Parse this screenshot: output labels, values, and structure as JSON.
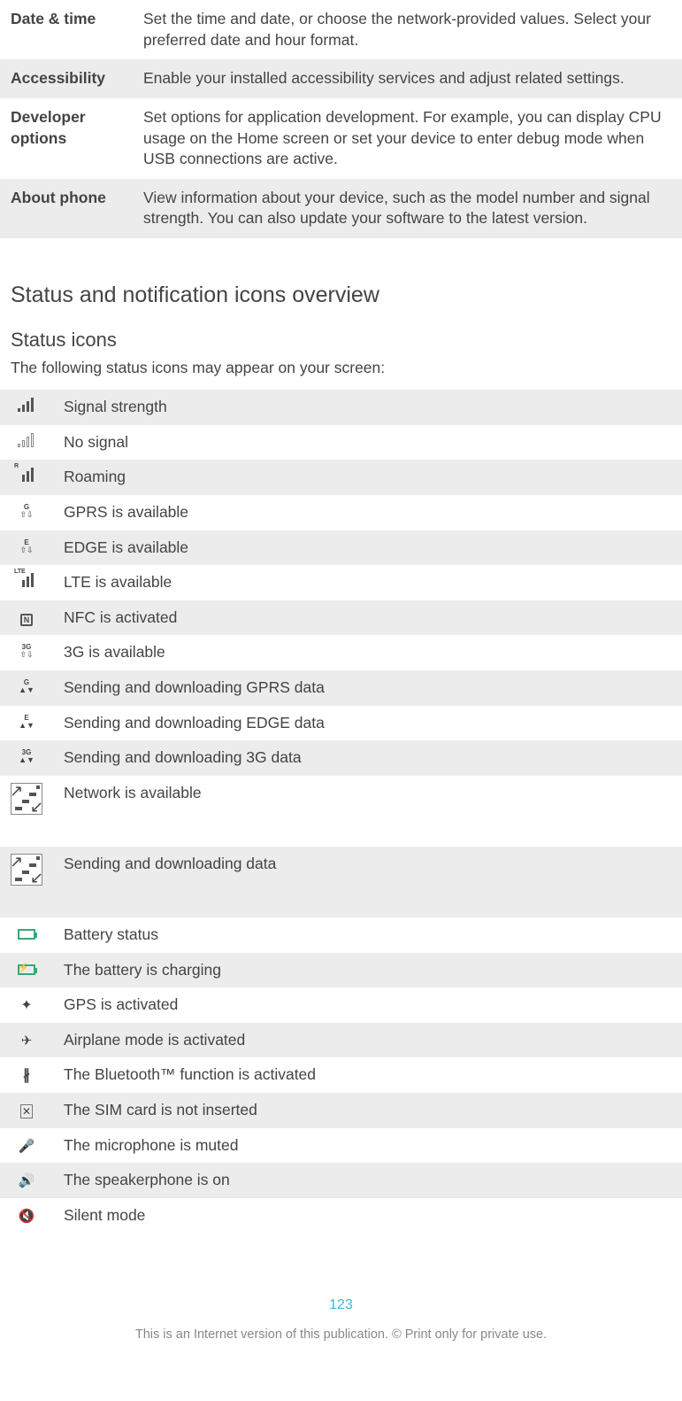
{
  "settingsRows": [
    {
      "name": "Date & time",
      "desc": "Set the time and date, or choose the network-provided values. Select your preferred date and hour format.",
      "shade": "light"
    },
    {
      "name": "Accessibility",
      "desc": "Enable your installed accessibility services and adjust related settings.",
      "shade": "dark"
    },
    {
      "name": "Developer options",
      "desc": "Set options for application development. For example, you can display CPU usage on the Home screen or set your device to enter debug mode when USB connections are active.",
      "shade": "light"
    },
    {
      "name": "About phone",
      "desc": "View information about your device, such as the model number and signal strength. You can also update your software to the latest version.",
      "shade": "dark"
    }
  ],
  "headings": {
    "main": "Status and notification icons overview",
    "sub": "Status icons",
    "intro": "The following status icons may appear on your screen:"
  },
  "statusRows": [
    {
      "icon": "signal-full",
      "text": "Signal strength",
      "shade": "dark"
    },
    {
      "icon": "signal-none",
      "text": "No signal",
      "shade": "light"
    },
    {
      "icon": "signal-roam",
      "text": "Roaming",
      "shade": "dark"
    },
    {
      "icon": "gprs-avail",
      "text": "GPRS is available",
      "shade": "light"
    },
    {
      "icon": "edge-avail",
      "text": "EDGE is available",
      "shade": "dark"
    },
    {
      "icon": "lte-avail",
      "text": "LTE is available",
      "shade": "light"
    },
    {
      "icon": "nfc",
      "text": "NFC is activated",
      "shade": "dark"
    },
    {
      "icon": "3g-avail",
      "text": "3G is available",
      "shade": "light"
    },
    {
      "icon": "gprs-data",
      "text": "Sending and downloading GPRS data",
      "shade": "dark"
    },
    {
      "icon": "edge-data",
      "text": "Sending and downloading EDGE data",
      "shade": "light"
    },
    {
      "icon": "3g-data",
      "text": "Sending and downloading 3G data",
      "shade": "dark"
    },
    {
      "icon": "net-avail",
      "text": "Network is available",
      "shade": "light",
      "tall": true
    },
    {
      "icon": "net-data",
      "text": "Sending and downloading data",
      "shade": "dark",
      "tall": true
    },
    {
      "icon": "battery",
      "text": "Battery status",
      "shade": "light"
    },
    {
      "icon": "battery-chg",
      "text": "The battery is charging",
      "shade": "dark"
    },
    {
      "icon": "gps",
      "text": "GPS is activated",
      "shade": "light"
    },
    {
      "icon": "airplane",
      "text": "Airplane mode is activated",
      "shade": "dark"
    },
    {
      "icon": "bluetooth",
      "text": "The Bluetooth™ function is activated",
      "shade": "light"
    },
    {
      "icon": "sim-none",
      "text": "The SIM card is not inserted",
      "shade": "dark"
    },
    {
      "icon": "mic-mute",
      "text": "The microphone is muted",
      "shade": "light"
    },
    {
      "icon": "speaker",
      "text": "The speakerphone is on",
      "shade": "dark"
    },
    {
      "icon": "silent",
      "text": "Silent mode",
      "shade": "light"
    }
  ],
  "pageNumber": "123",
  "footer": "This is an Internet version of this publication. © Print only for private use.",
  "colors": {
    "rowDark": "#ececec",
    "rowLight": "#ffffff",
    "text": "#444444",
    "accent": "#3fb7d4",
    "footer": "#888888"
  }
}
